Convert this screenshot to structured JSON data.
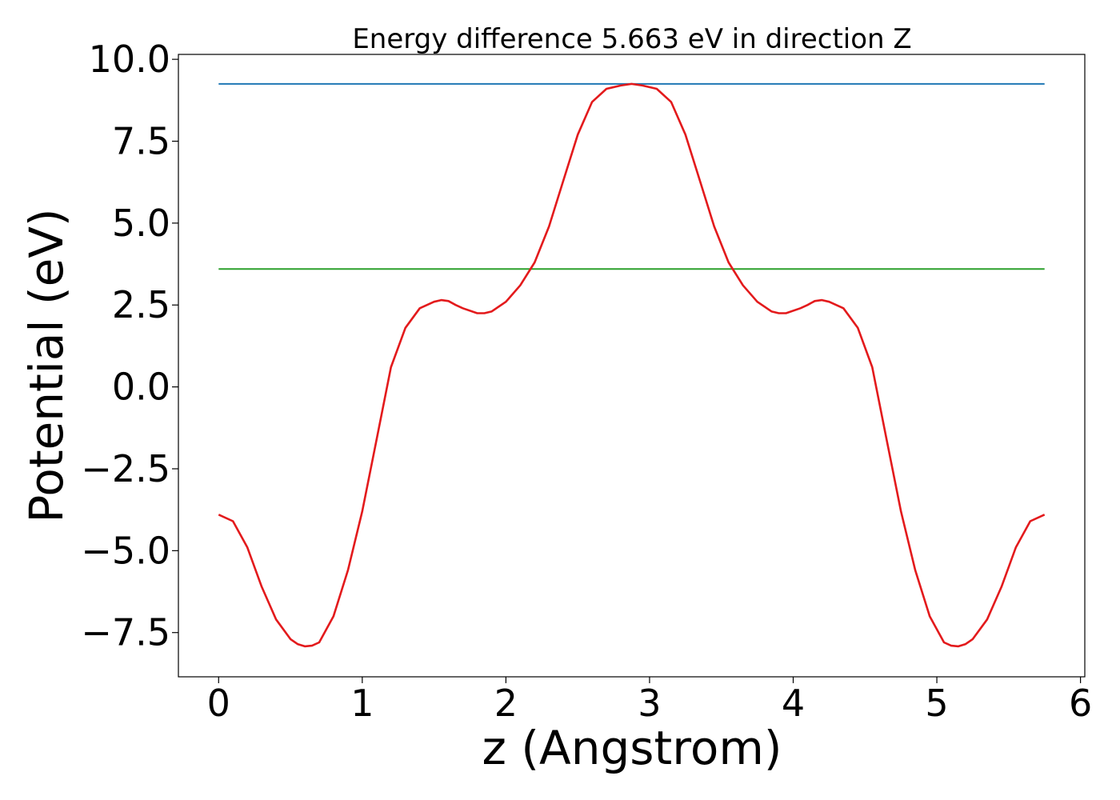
{
  "chart_data": {
    "type": "line",
    "title": "Energy difference 5.663 eV in direction Z",
    "xlabel": "z (Angstrom)",
    "ylabel": "Potential (eV)",
    "xlim": [
      -0.28,
      6.03
    ],
    "ylim": [
      -8.85,
      10.15
    ],
    "xticks": [
      0,
      1,
      2,
      3,
      4,
      5,
      6
    ],
    "xtick_labels": [
      "0",
      "1",
      "2",
      "3",
      "4",
      "5",
      "6"
    ],
    "yticks": [
      -7.5,
      -5.0,
      -2.5,
      0.0,
      2.5,
      5.0,
      7.5,
      10.0
    ],
    "ytick_labels": [
      "−7.5",
      "−5.0",
      "−2.5",
      "0.0",
      "2.5",
      "5.0",
      "7.5",
      "10.0"
    ],
    "grid": false,
    "colors": {
      "vacuum": "#1f77b4",
      "average": "#2ca02c",
      "potential": "#e31a1c"
    },
    "series": [
      {
        "key": "vacuum",
        "x": [
          0,
          5.75
        ],
        "y": [
          9.25,
          9.25
        ]
      },
      {
        "key": "average",
        "x": [
          0,
          5.75
        ],
        "y": [
          3.6,
          3.6
        ]
      },
      {
        "key": "potential",
        "x": [
          0.0,
          0.1,
          0.2,
          0.3,
          0.4,
          0.5,
          0.55,
          0.6,
          0.65,
          0.7,
          0.8,
          0.9,
          1.0,
          1.1,
          1.2,
          1.3,
          1.4,
          1.5,
          1.55,
          1.6,
          1.65,
          1.7,
          1.8,
          1.85,
          1.9,
          2.0,
          2.1,
          2.2,
          2.3,
          2.4,
          2.5,
          2.6,
          2.7,
          2.8,
          2.875,
          2.95,
          3.05,
          3.15,
          3.25,
          3.35,
          3.45,
          3.55,
          3.65,
          3.75,
          3.85,
          3.9,
          3.95,
          4.05,
          4.1,
          4.15,
          4.2,
          4.25,
          4.35,
          4.45,
          4.55,
          4.65,
          4.75,
          4.85,
          4.95,
          5.05,
          5.1,
          5.15,
          5.2,
          5.25,
          5.35,
          5.45,
          5.55,
          5.65,
          5.75
        ],
        "y": [
          -3.9,
          -4.1,
          -4.9,
          -6.1,
          -7.1,
          -7.7,
          -7.85,
          -7.92,
          -7.9,
          -7.8,
          -7.0,
          -5.6,
          -3.8,
          -1.6,
          0.6,
          1.8,
          2.4,
          2.6,
          2.65,
          2.62,
          2.5,
          2.4,
          2.25,
          2.25,
          2.3,
          2.6,
          3.1,
          3.8,
          4.9,
          6.3,
          7.7,
          8.7,
          9.1,
          9.2,
          9.25,
          9.2,
          9.1,
          8.7,
          7.7,
          6.3,
          4.9,
          3.8,
          3.1,
          2.6,
          2.3,
          2.25,
          2.25,
          2.4,
          2.5,
          2.62,
          2.65,
          2.6,
          2.4,
          1.8,
          0.6,
          -1.6,
          -3.8,
          -5.6,
          -7.0,
          -7.8,
          -7.9,
          -7.92,
          -7.85,
          -7.7,
          -7.1,
          -6.1,
          -4.9,
          -4.1,
          -3.9
        ]
      }
    ]
  }
}
